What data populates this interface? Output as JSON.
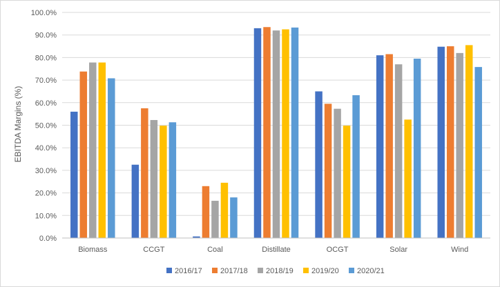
{
  "chart_data": {
    "type": "bar",
    "title": "",
    "xlabel": "",
    "ylabel": "EBITDA Margins (%)",
    "ylim": [
      0,
      100
    ],
    "yticks": [
      "0.0%",
      "10.0%",
      "20.0%",
      "30.0%",
      "40.0%",
      "50.0%",
      "60.0%",
      "70.0%",
      "80.0%",
      "90.0%",
      "100.0%"
    ],
    "grid": true,
    "legend_position": "bottom",
    "categories": [
      "Biomass",
      "CCGT",
      "Coal",
      "Distillate",
      "OCGT",
      "Solar",
      "Wind"
    ],
    "series": [
      {
        "name": "2016/17",
        "color": "#4472C4",
        "values": [
          56.0,
          32.5,
          0.7,
          93.0,
          65.0,
          81.0,
          84.8
        ]
      },
      {
        "name": "2017/18",
        "color": "#ED7D31",
        "values": [
          73.8,
          57.5,
          23.0,
          93.5,
          59.5,
          81.5,
          85.0
        ]
      },
      {
        "name": "2018/19",
        "color": "#A5A5A5",
        "values": [
          77.8,
          52.3,
          16.5,
          92.0,
          57.3,
          77.0,
          82.0
        ]
      },
      {
        "name": "2019/20",
        "color": "#FFC000",
        "values": [
          77.8,
          49.8,
          24.5,
          92.5,
          49.8,
          52.5,
          85.5
        ]
      },
      {
        "name": "2020/21",
        "color": "#5B9BD5",
        "values": [
          70.8,
          51.3,
          18.0,
          93.3,
          63.3,
          79.5,
          75.8
        ]
      }
    ]
  }
}
